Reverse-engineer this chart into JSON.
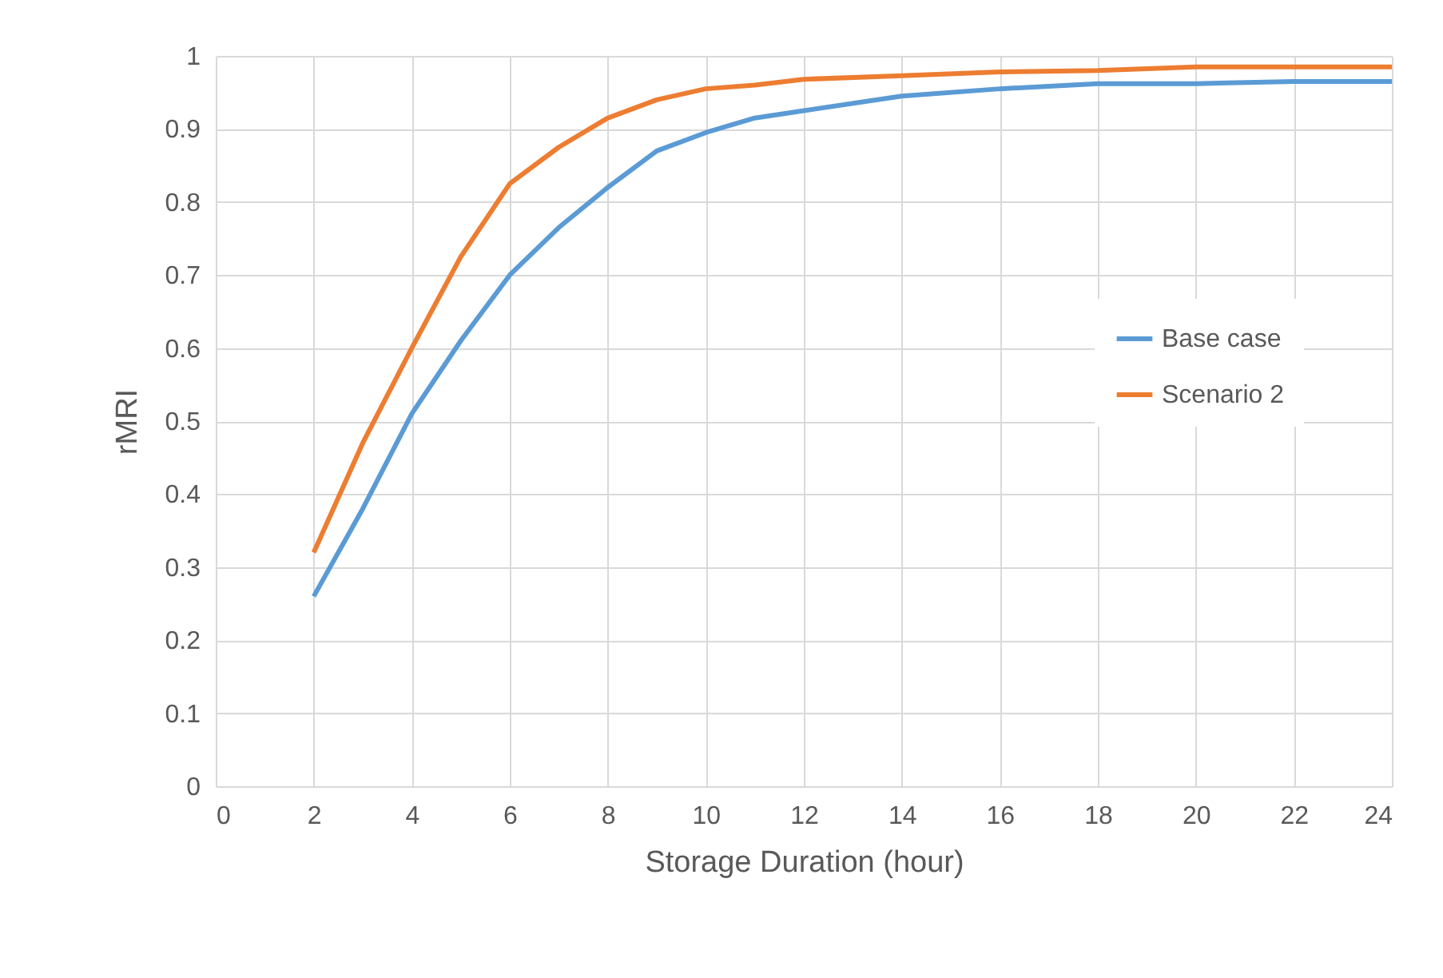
{
  "chart_data": {
    "type": "line",
    "xlabel": "Storage Duration (hour)",
    "ylabel": "rMRI",
    "x": [
      2,
      3,
      4,
      5,
      6,
      7,
      8,
      9,
      10,
      11,
      12,
      14,
      16,
      18,
      20,
      22,
      24
    ],
    "series": [
      {
        "name": "Base case",
        "color": "#5b9bd5",
        "values": [
          0.26,
          0.38,
          0.51,
          0.61,
          0.7,
          0.765,
          0.82,
          0.87,
          0.895,
          0.915,
          0.925,
          0.945,
          0.955,
          0.962,
          0.962,
          0.965,
          0.965
        ]
      },
      {
        "name": "Scenario 2",
        "color": "#ed7d31",
        "values": [
          0.32,
          0.47,
          0.6,
          0.725,
          0.825,
          0.875,
          0.915,
          0.94,
          0.955,
          0.96,
          0.968,
          0.973,
          0.978,
          0.98,
          0.985,
          0.985,
          0.985
        ]
      }
    ],
    "xlim": [
      0,
      24
    ],
    "xticks": [
      0,
      2,
      4,
      6,
      8,
      10,
      12,
      14,
      16,
      18,
      20,
      22,
      24
    ],
    "ylim": [
      0,
      1
    ],
    "yticks": [
      0,
      0.1,
      0.2,
      0.3,
      0.4,
      0.5,
      0.6,
      0.7,
      0.8,
      0.9,
      1
    ],
    "grid": true,
    "legend": "right",
    "marker": "none",
    "line_style": "solid"
  }
}
